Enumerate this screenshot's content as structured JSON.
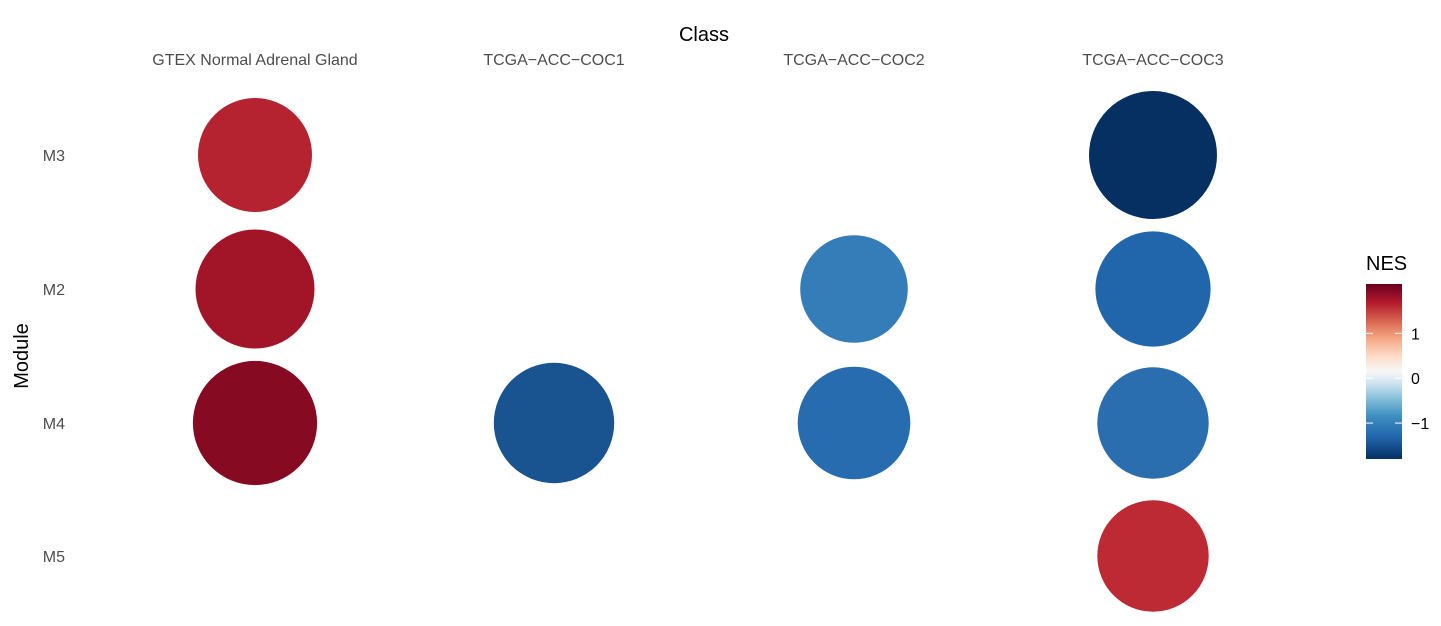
{
  "chart_data": {
    "type": "scatter",
    "subtype": "dot-matrix",
    "xlabel": "Class",
    "ylabel": "Module",
    "x_axis_position": "top",
    "categories": [
      "GTEX Normal Adrenal Gland",
      "TCGA−ACC−COC1",
      "TCGA−ACC−COC2",
      "TCGA−ACC−COC3"
    ],
    "y_categories": [
      "M3",
      "M2",
      "M4",
      "M5"
    ],
    "grid": false,
    "legend": {
      "title": "NES",
      "position": "right",
      "type": "colorbar",
      "ticks": [
        1,
        0,
        -1
      ],
      "tick_labels": [
        "1",
        "0",
        "−1"
      ],
      "range": [
        -1.8,
        2.1
      ]
    },
    "color_scale": {
      "palette": "RdBu",
      "stops": [
        {
          "value": -1.8,
          "color": "#053061"
        },
        {
          "value": -1.3,
          "color": "#2166ac"
        },
        {
          "value": -0.8,
          "color": "#4393c3"
        },
        {
          "value": -0.4,
          "color": "#92c5de"
        },
        {
          "value": -0.1,
          "color": "#d1e5f0"
        },
        {
          "value": 0.15,
          "color": "#f7f7f7"
        },
        {
          "value": 0.5,
          "color": "#fddbc7"
        },
        {
          "value": 0.9,
          "color": "#f4a582"
        },
        {
          "value": 1.3,
          "color": "#d6604d"
        },
        {
          "value": 1.7,
          "color": "#b2182b"
        },
        {
          "value": 2.1,
          "color": "#67001f"
        }
      ]
    },
    "points": [
      {
        "x": "GTEX Normal Adrenal Gland",
        "y": "M3",
        "nes": 1.55,
        "size": 0.89,
        "color": "#b52230"
      },
      {
        "x": "GTEX Normal Adrenal Gland",
        "y": "M2",
        "nes": 1.8,
        "size": 0.93,
        "color": "#a21428"
      },
      {
        "x": "GTEX Normal Adrenal Gland",
        "y": "M4",
        "nes": 2.05,
        "size": 0.97,
        "color": "#850a22"
      },
      {
        "x": "TCGA−ACC−COC1",
        "y": "M4",
        "nes": -1.6,
        "size": 0.94,
        "color": "#195390"
      },
      {
        "x": "TCGA−ACC−COC2",
        "y": "M2",
        "nes": -1.05,
        "size": 0.84,
        "color": "#347db8"
      },
      {
        "x": "TCGA−ACC−COC2",
        "y": "M4",
        "nes": -1.35,
        "size": 0.88,
        "color": "#286cb0"
      },
      {
        "x": "TCGA−ACC−COC3",
        "y": "M3",
        "nes": -1.85,
        "size": 1.0,
        "color": "#062f62"
      },
      {
        "x": "TCGA−ACC−COC3",
        "y": "M2",
        "nes": -1.45,
        "size": 0.9,
        "color": "#2165ab"
      },
      {
        "x": "TCGA−ACC−COC3",
        "y": "M4",
        "nes": -1.3,
        "size": 0.87,
        "color": "#2a6eb0"
      },
      {
        "x": "TCGA−ACC−COC3",
        "y": "M5",
        "nes": 1.6,
        "size": 0.87,
        "color": "#bd2a33"
      }
    ]
  }
}
